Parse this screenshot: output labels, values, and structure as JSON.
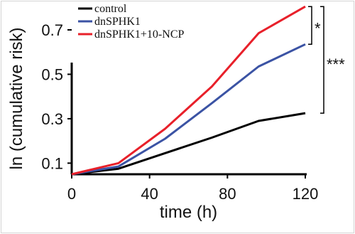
{
  "chart_data": {
    "type": "line",
    "title": "",
    "xlabel": "time (h)",
    "ylabel": "ln (cumulative risk)",
    "xlim": [
      0,
      120
    ],
    "ylim": [
      0.05,
      0.78
    ],
    "x_ticks": [
      0,
      40,
      80,
      120
    ],
    "y_ticks": [
      0.1,
      0.3,
      0.5,
      0.7
    ],
    "x_tick_labels": [
      "0",
      "40",
      "80",
      "120"
    ],
    "y_tick_labels": [
      "0.1",
      "0.3",
      "0.5",
      "0.7"
    ],
    "grid": false,
    "legend_position": "top-left",
    "x": [
      0,
      24,
      48,
      72,
      96,
      120
    ],
    "series": [
      {
        "name": "control",
        "color": "#000000",
        "values": [
          0.05,
          0.075,
          0.145,
          0.215,
          0.29,
          0.325
        ]
      },
      {
        "name": "dnSPHK1",
        "color": "#3b53a4",
        "values": [
          0.05,
          0.085,
          0.21,
          0.37,
          0.535,
          0.635
        ]
      },
      {
        "name": "dnSPHK1+10-NCP",
        "color": "#e8202a",
        "values": [
          0.05,
          0.1,
          0.255,
          0.445,
          0.685,
          0.805
        ]
      }
    ],
    "annotations": [
      {
        "label": "*",
        "between": [
          "dnSPHK1",
          "dnSPHK1+10-NCP"
        ]
      },
      {
        "label": "***",
        "between": [
          "control",
          "dnSPHK1+10-NCP"
        ]
      }
    ]
  }
}
